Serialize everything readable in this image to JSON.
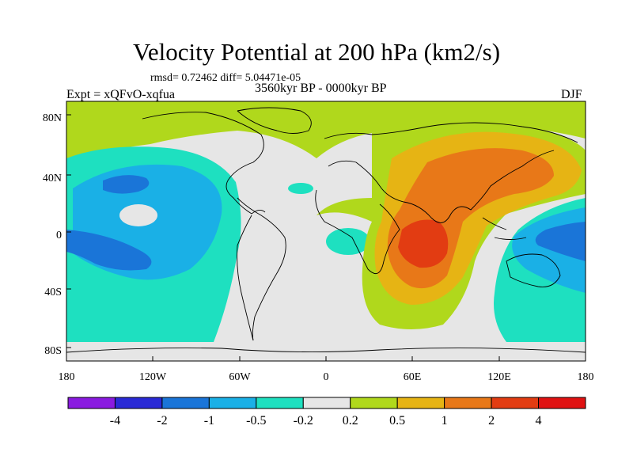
{
  "title": "Velocity Potential at 200 hPa (km2/s)",
  "stats": "rmsd= 0.72462 diff= 5.04471e-05",
  "period": "3560kyr BP - 0000kyr BP",
  "experiment": "Expt = xQFvO-xqfua",
  "season": "DJF",
  "map": {
    "lat_ticks": [
      "80N",
      "40N",
      "0",
      "40S",
      "80S"
    ],
    "lon_ticks": [
      "180",
      "120W",
      "60W",
      "0",
      "60E",
      "120E",
      "180"
    ]
  },
  "colorbar": {
    "labels": [
      "-4",
      "-2",
      "-1",
      "-0.5",
      "-0.2",
      "0.2",
      "0.5",
      "1",
      "2",
      "4"
    ],
    "colors": [
      "#8a1be0",
      "#2a2ad6",
      "#1a75d8",
      "#1ab0e6",
      "#1ee0c0",
      "#e6e6e6",
      "#b0d81c",
      "#e6b414",
      "#e87818",
      "#e23c12",
      "#e01212"
    ]
  },
  "field_colors": {
    "neg_1": "#1a75d8",
    "neg_05": "#1ab0e6",
    "neg_02": "#1ee0c0",
    "near_zero": "#e6e6e6",
    "pos_02": "#b0d81c",
    "pos_05": "#e6b414",
    "pos_1": "#e87818",
    "pos_2": "#e23c12"
  }
}
